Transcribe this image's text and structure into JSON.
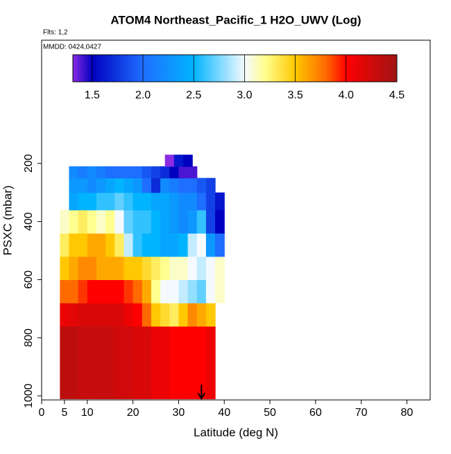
{
  "chart_data": {
    "type": "curtain",
    "title": "ATOM4 Northeast_Pacific_1 H2O_UWV (Log)",
    "annotations": [
      "Flts: 1,2",
      "MMDD: 0424,0427"
    ],
    "x_label": "Latitude (deg N)",
    "y_label": "PSXC (mbar)",
    "xlim": [
      0,
      85.1
    ],
    "xticks": [
      0,
      5,
      10,
      20,
      30,
      40,
      50,
      60,
      70,
      80
    ],
    "ylim": [
      1014,
      -224
    ],
    "yticks": [
      200,
      400,
      600,
      800,
      1000
    ],
    "lat_step": 2,
    "rows": [
      {
        "p": [
          760,
          1010
        ],
        "lat0": 4,
        "values": [
          4.35,
          4.35,
          4.3,
          4.3,
          4.3,
          4.3,
          4.25,
          4.25,
          4.2,
          4.2,
          4.1,
          4.1,
          4.0,
          4.0,
          4.0,
          4.0,
          4.1
        ]
      },
      {
        "p": [
          680,
          760
        ],
        "lat0": 4,
        "values": [
          4.1,
          4.15,
          4.2,
          4.2,
          4.2,
          4.2,
          4.2,
          4.1,
          4.0,
          3.8,
          3.5,
          3.4,
          3.3,
          3.5,
          3.7,
          3.6,
          3.5
        ]
      },
      {
        "p": [
          600,
          680
        ],
        "lat0": 4,
        "values": [
          3.8,
          3.8,
          3.9,
          4.0,
          4.0,
          4.0,
          4.0,
          3.9,
          3.8,
          3.6,
          3.2,
          3.0,
          3.0,
          2.9,
          2.8,
          2.7,
          3.0,
          3.1
        ]
      },
      {
        "p": [
          520,
          600
        ],
        "lat0": 4,
        "values": [
          3.5,
          3.6,
          3.7,
          3.7,
          3.6,
          3.6,
          3.6,
          3.5,
          3.5,
          3.4,
          3.3,
          3.2,
          3.1,
          3.1,
          3.0,
          2.9,
          3.0,
          3.1
        ]
      },
      {
        "p": [
          440,
          520
        ],
        "lat0": 4,
        "values": [
          3.3,
          3.5,
          3.5,
          3.6,
          3.6,
          3.5,
          3.3,
          2.9,
          2.6,
          2.5,
          2.5,
          2.4,
          2.4,
          2.5,
          2.9,
          3.0,
          2.3,
          2.0
        ]
      },
      {
        "p": [
          360,
          440
        ],
        "lat0": 4,
        "values": [
          3.1,
          3.2,
          3.3,
          3.2,
          3.1,
          3.2,
          3.0,
          2.7,
          2.6,
          2.6,
          2.5,
          2.4,
          2.3,
          2.2,
          2.3,
          2.6,
          1.8,
          1.5
        ]
      },
      {
        "p": [
          300,
          360
        ],
        "lat0": 6,
        "values": [
          2.4,
          2.5,
          2.5,
          2.6,
          2.6,
          2.7,
          2.6,
          2.5,
          2.5,
          2.4,
          2.4,
          2.3,
          2.2,
          2.2,
          2.0,
          1.8,
          1.6
        ]
      },
      {
        "p": [
          250,
          300
        ],
        "lat0": 6,
        "values": [
          2.3,
          2.3,
          2.2,
          2.3,
          2.4,
          2.5,
          2.4,
          2.3,
          2.0,
          1.7,
          2.2,
          2.1,
          2.0,
          2.0,
          1.9,
          1.8
        ]
      },
      {
        "p": [
          210,
          250
        ],
        "lat0": 6,
        "values": [
          2.2,
          2.1,
          2.2,
          2.1,
          2.0,
          2.0,
          2.0,
          2.0,
          1.9,
          1.8,
          1.7,
          1.5,
          1.4,
          1.4
        ]
      },
      {
        "p": [
          170,
          210
        ],
        "lat0": 27,
        "values": [
          1.3,
          1.6,
          1.5
        ]
      }
    ],
    "marker_lat": 35,
    "colorbar": {
      "lim": [
        1.31,
        4.5
      ],
      "ticks": [
        {
          "value": 1.5,
          "label": "1.5"
        },
        {
          "value": 2,
          "label": "2.0"
        },
        {
          "value": 2.5,
          "label": "2.5"
        },
        {
          "value": 3,
          "label": "3.0"
        },
        {
          "value": 3.5,
          "label": "3.5"
        },
        {
          "value": 4,
          "label": "4.0"
        },
        {
          "value": 4.5,
          "label": "4.5"
        }
      ],
      "stops": [
        [
          1.31,
          "#8a2be2"
        ],
        [
          1.5,
          "#0000c0"
        ],
        [
          2.0,
          "#1e6eff"
        ],
        [
          2.5,
          "#00b4ff"
        ],
        [
          3.0,
          "#f4faff"
        ],
        [
          3.2,
          "#ffff90"
        ],
        [
          3.5,
          "#ffc800"
        ],
        [
          3.8,
          "#ff6a00"
        ],
        [
          4.0,
          "#ff0000"
        ],
        [
          4.5,
          "#a01414"
        ]
      ]
    }
  }
}
